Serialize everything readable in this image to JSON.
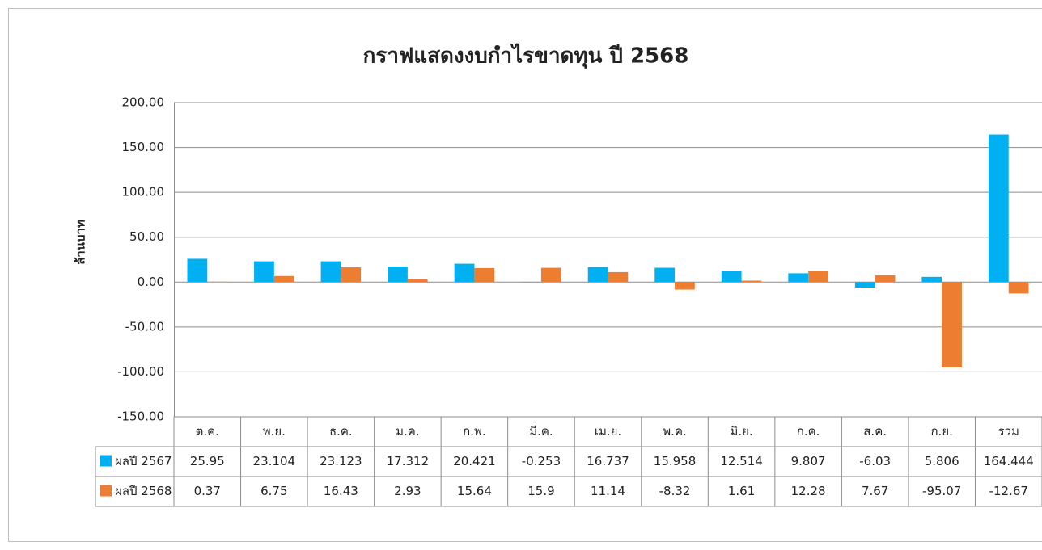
{
  "chart_data": {
    "type": "bar",
    "title": "กราฟแสดงงบกำไรขาดทุน ปี 2568",
    "y_label": "ล้านบาท",
    "categories": [
      "ต.ค.",
      "พ.ย.",
      "ธ.ค.",
      "ม.ค.",
      "ก.พ.",
      "มี.ค.",
      "เม.ย.",
      "พ.ค.",
      "มิ.ย.",
      "ก.ค.",
      "ส.ค.",
      "ก.ย.",
      "รวม"
    ],
    "series": [
      {
        "name": "ผลปี 2567",
        "color": "#00b0f0",
        "values": [
          25.95,
          23.104,
          23.123,
          17.312,
          20.421,
          -0.253,
          16.737,
          15.958,
          12.514,
          9.807,
          -6.03,
          5.806,
          164.444
        ]
      },
      {
        "name": "ผลปี 2568",
        "color": "#ed7d31",
        "values": [
          0.37,
          6.75,
          16.43,
          2.93,
          15.64,
          15.9,
          11.14,
          -8.32,
          1.61,
          12.28,
          7.67,
          -95.07,
          -12.67
        ]
      }
    ],
    "ylim": [
      -150,
      200
    ],
    "yticks": [
      {
        "value": -150,
        "label": "-150.00"
      },
      {
        "value": -100,
        "label": "-100.00"
      },
      {
        "value": -50,
        "label": "-50.00"
      },
      {
        "value": 0,
        "label": "0.00"
      },
      {
        "value": 50,
        "label": "50.00"
      },
      {
        "value": 100,
        "label": "100.00"
      },
      {
        "value": 150,
        "label": "150.00"
      },
      {
        "value": 200,
        "label": "200.00"
      }
    ],
    "grid": true,
    "data_table": true
  }
}
